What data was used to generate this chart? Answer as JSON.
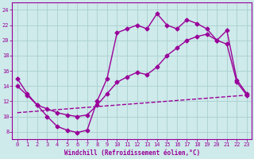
{
  "xlabel": "Windchill (Refroidissement éolien,°C)",
  "background_color": "#ceeaea",
  "grid_color": "#aacfcf",
  "line_color": "#990099",
  "xlim": [
    -0.5,
    23.5
  ],
  "ylim": [
    7,
    25
  ],
  "yticks": [
    8,
    10,
    12,
    14,
    16,
    18,
    20,
    22,
    24
  ],
  "xticks": [
    0,
    1,
    2,
    3,
    4,
    5,
    6,
    7,
    8,
    9,
    10,
    11,
    12,
    13,
    14,
    15,
    16,
    17,
    18,
    19,
    20,
    21,
    22,
    23
  ],
  "line1_x": [
    0,
    1,
    2,
    3,
    4,
    5,
    6,
    7,
    8,
    9,
    10,
    11,
    12,
    13,
    14,
    15,
    16,
    17,
    18,
    19,
    20,
    21,
    22,
    23
  ],
  "line1_y": [
    15.0,
    13.0,
    11.5,
    10.0,
    8.7,
    8.2,
    7.9,
    8.2,
    12.0,
    15.0,
    21.0,
    21.5,
    22.0,
    21.5,
    23.5,
    22.0,
    21.5,
    22.7,
    22.2,
    21.5,
    20.0,
    21.3,
    14.8,
    13.0
  ],
  "line2_x": [
    0,
    1,
    2,
    3,
    4,
    5,
    6,
    7,
    8,
    9,
    10,
    11,
    12,
    13,
    14,
    15,
    16,
    17,
    18,
    19,
    20,
    21,
    22,
    23
  ],
  "line2_y": [
    14.0,
    12.8,
    11.5,
    11.0,
    10.5,
    10.2,
    10.0,
    10.2,
    11.5,
    13.0,
    14.5,
    15.2,
    15.8,
    15.5,
    16.5,
    18.0,
    19.0,
    20.0,
    20.5,
    20.8,
    20.0,
    19.5,
    14.5,
    12.8
  ],
  "line3_x": [
    0,
    1,
    2,
    3,
    4,
    5,
    6,
    7,
    8,
    9,
    10,
    11,
    12,
    13,
    14,
    15,
    16,
    17,
    18,
    19,
    20,
    21,
    22,
    23
  ],
  "line3_y": [
    10.5,
    10.6,
    10.7,
    10.8,
    10.9,
    11.0,
    11.1,
    11.2,
    11.3,
    11.4,
    11.5,
    11.6,
    11.7,
    11.8,
    11.9,
    12.0,
    12.1,
    12.2,
    12.3,
    12.4,
    12.5,
    12.6,
    12.7,
    12.8
  ],
  "marker_style": "D",
  "marker_size": 2.5,
  "linewidth": 1.0
}
